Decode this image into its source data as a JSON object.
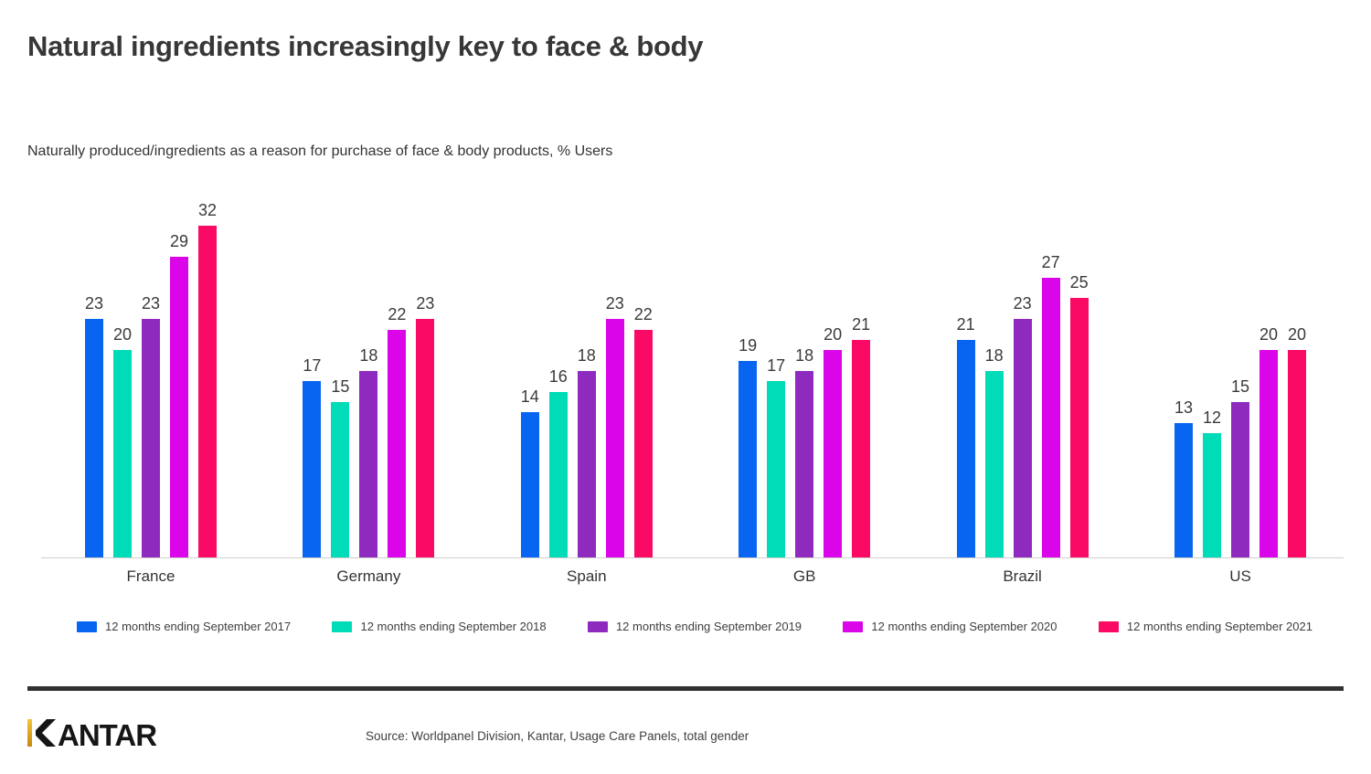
{
  "page": {
    "title": "Natural ingredients increasingly key to face & body",
    "subtitle": "Naturally produced/ingredients as a reason for purchase of face & body products, % Users",
    "source": "Source: Worldpanel Division, Kantar, Usage Care Panels, total gender",
    "logo_text": "KANTAR"
  },
  "colors": {
    "title_text": "#373737",
    "value_label": "#3a3a3a",
    "axis_line": "#cfcfcf",
    "divider": "#313131",
    "logo_black": "#161616",
    "logo_gold_top": "#f6c63e",
    "logo_gold_bottom": "#c8860e"
  },
  "chart_data": {
    "type": "bar",
    "title": "Naturally produced/ingredients as a reason for purchase of face & body products, % Users",
    "xlabel": "",
    "ylabel": "% Users",
    "ylim": [
      0,
      34
    ],
    "grid": false,
    "value_labels": true,
    "legend_position": "bottom",
    "categories": [
      "France",
      "Germany",
      "Spain",
      "GB",
      "Brazil",
      "US"
    ],
    "series": [
      {
        "name": "12 months ending September 2017",
        "color": "#0765f2",
        "values": [
          23,
          17,
          14,
          19,
          21,
          13
        ]
      },
      {
        "name": "12 months ending September 2018",
        "color": "#00dcb8",
        "values": [
          20,
          15,
          16,
          17,
          18,
          12
        ]
      },
      {
        "name": "12 months ending September 2019",
        "color": "#8e2bbe",
        "values": [
          23,
          18,
          18,
          18,
          23,
          15
        ]
      },
      {
        "name": "12 months ending September 2020",
        "color": "#da05e8",
        "values": [
          29,
          22,
          23,
          20,
          27,
          20
        ]
      },
      {
        "name": "12 months ending September 2021",
        "color": "#fa0a64",
        "values": [
          32,
          23,
          22,
          21,
          25,
          20
        ]
      }
    ]
  }
}
